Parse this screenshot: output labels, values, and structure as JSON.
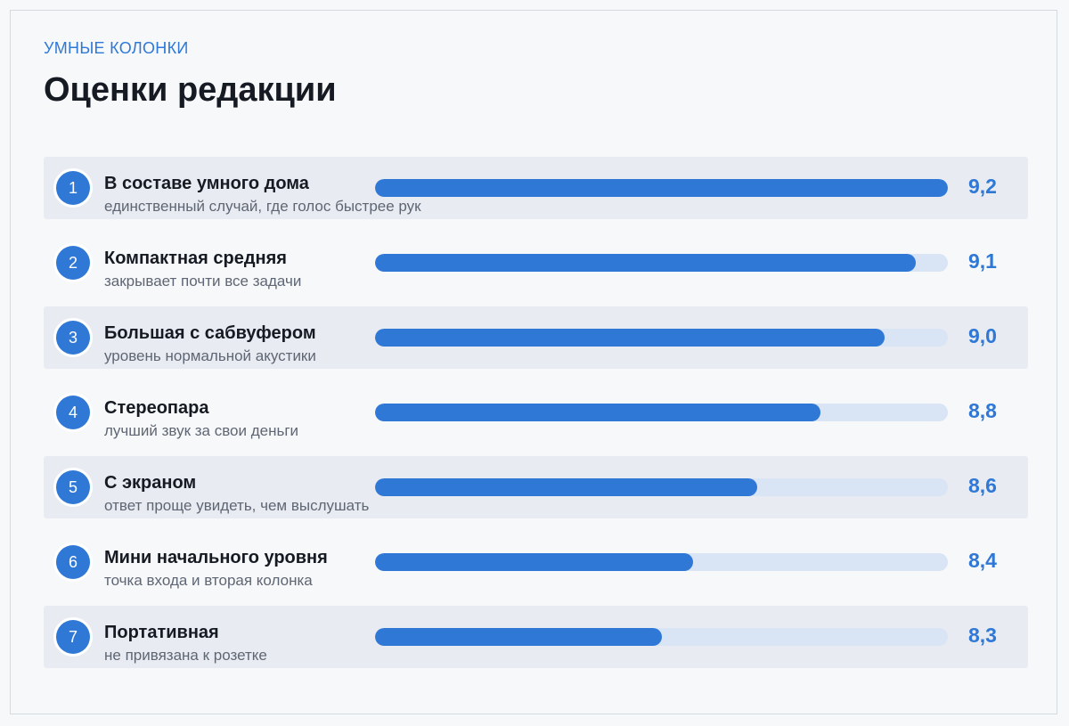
{
  "header": {
    "kicker": "УМНЫЕ КОЛОНКИ",
    "title": "Оценки редакции"
  },
  "colors": {
    "accent": "#2f78d6",
    "track": "#d9e4f4",
    "row_shade": "#e8ecf2"
  },
  "chart_data": {
    "type": "bar",
    "orientation": "horizontal",
    "scale_max": 9.2,
    "categories": [
      "В составе умного дома",
      "Компактная средняя",
      "Большая с сабвуфером",
      "Стереопара",
      "С экраном",
      "Мини начального уровня",
      "Портативная"
    ],
    "values": [
      9.2,
      9.1,
      9.0,
      8.8,
      8.6,
      8.4,
      8.3
    ],
    "items": [
      {
        "rank": "1",
        "label": "В составе умного дома",
        "sublabel": "единственный случай, где голос быстрее рук",
        "value": 9.2,
        "value_label": "9,2"
      },
      {
        "rank": "2",
        "label": "Компактная средняя",
        "sublabel": "закрывает почти все задачи",
        "value": 9.1,
        "value_label": "9,1"
      },
      {
        "rank": "3",
        "label": "Большая с сабвуфером",
        "sublabel": "уровень нормальной акустики",
        "value": 9.0,
        "value_label": "9,0"
      },
      {
        "rank": "4",
        "label": "Стереопара",
        "sublabel": "лучший звук за свои деньги",
        "value": 8.8,
        "value_label": "8,8"
      },
      {
        "rank": "5",
        "label": "С экраном",
        "sublabel": "ответ проще увидеть, чем выслушать",
        "value": 8.6,
        "value_label": "8,6"
      },
      {
        "rank": "6",
        "label": "Мини начального уровня",
        "sublabel": "точка входа и вторая колонка",
        "value": 8.4,
        "value_label": "8,4"
      },
      {
        "rank": "7",
        "label": "Портативная",
        "sublabel": "не привязана к розетке",
        "value": 8.3,
        "value_label": "8,3"
      }
    ]
  }
}
